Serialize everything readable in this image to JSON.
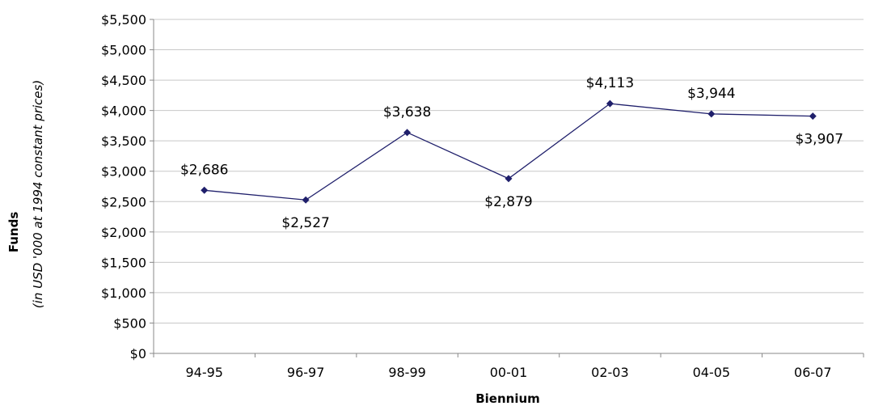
{
  "chart_data": {
    "type": "line",
    "categories": [
      "94-95",
      "96-97",
      "98-99",
      "00-01",
      "02-03",
      "04-05",
      "06-07"
    ],
    "values": [
      2686,
      2527,
      3638,
      2879,
      4113,
      3944,
      3907
    ],
    "data_labels": [
      "$2,686",
      "$2,527",
      "$3,638",
      "$2,879",
      "$4,113",
      "$3,944",
      "$3,907"
    ],
    "xlabel": "Biennium",
    "ylabel": "Funds",
    "ylabel_sub": "(in USD '000 at 1994 constant prices)",
    "ylim": [
      0,
      5500
    ],
    "y_ticks": [
      0,
      500,
      1000,
      1500,
      2000,
      2500,
      3000,
      3500,
      4000,
      4500,
      5000,
      5500
    ],
    "y_tick_labels": [
      "$0",
      "$500",
      "$1,000",
      "$1,500",
      "$2,000",
      "$2,500",
      "$3,000",
      "$3,500",
      "$4,000",
      "$4,500",
      "$5,000",
      "$5,500"
    ],
    "grid": true,
    "legend": "none",
    "line_color": "#1f1f6b",
    "marker": "diamond"
  }
}
